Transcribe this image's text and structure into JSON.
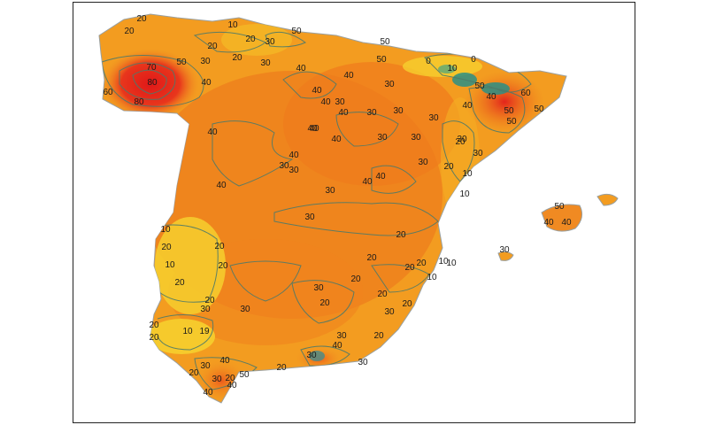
{
  "map": {
    "colors": {
      "land_base": "#f39c20",
      "land_dark": "#ee7a1c",
      "land_yellow": "#f6cf2e",
      "hot_red": "#e8281e",
      "cool_teal": "#2a8f86",
      "contour": "#4e7a6a",
      "border": "#9aa0a0"
    },
    "contour_labels": [
      "20",
      "10",
      "20",
      "20",
      "20",
      "30",
      "50",
      "30",
      "20",
      "30",
      "70",
      "50",
      "80",
      "60",
      "80",
      "40",
      "40",
      "40",
      "40",
      "30",
      "50",
      "0",
      "10",
      "0",
      "50",
      "50",
      "40",
      "40",
      "30",
      "40",
      "40",
      "30",
      "30",
      "40",
      "30",
      "40",
      "50",
      "60",
      "50",
      "50",
      "40",
      "40",
      "30",
      "30",
      "40",
      "30",
      "30",
      "20",
      "20",
      "30",
      "10",
      "30",
      "30",
      "40",
      "40",
      "40",
      "10",
      "30",
      "30",
      "20",
      "10",
      "10",
      "30",
      "40",
      "50",
      "40",
      "20",
      "20",
      "20",
      "10",
      "20",
      "20",
      "20",
      "20",
      "10",
      "10",
      "20",
      "30",
      "20",
      "20",
      "30",
      "20",
      "20",
      "30",
      "30",
      "20",
      "10",
      "19",
      "20",
      "20",
      "30",
      "40",
      "30",
      "40",
      "30",
      "20",
      "30",
      "20",
      "50",
      "40",
      "40",
      "30",
      "20"
    ]
  }
}
